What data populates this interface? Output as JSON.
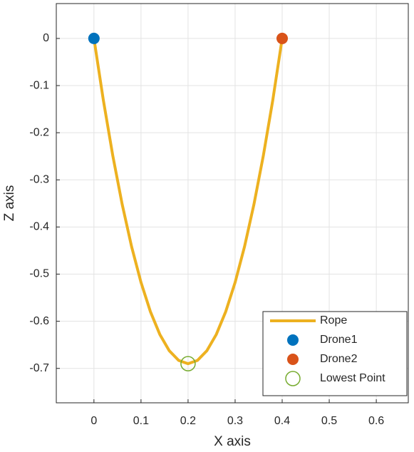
{
  "chart_data": {
    "type": "line",
    "xlabel": "X axis",
    "ylabel": "Z axis",
    "xlim": [
      -0.08,
      0.668
    ],
    "ylim": [
      -0.773,
      0.074
    ],
    "xticks": [
      0,
      0.1,
      0.2,
      0.3,
      0.4,
      0.5,
      0.6
    ],
    "yticks": [
      0,
      -0.1,
      -0.2,
      -0.3,
      -0.4,
      -0.5,
      -0.6,
      -0.7
    ],
    "grid": true,
    "legend": "lower-right",
    "series": [
      {
        "name": "Rope",
        "color": "#EDB120",
        "style": "line",
        "x": [
          0,
          0.02,
          0.04,
          0.06,
          0.08,
          0.1,
          0.12,
          0.14,
          0.16,
          0.18,
          0.2,
          0.22,
          0.24,
          0.26,
          0.28,
          0.3,
          0.32,
          0.34,
          0.36,
          0.38,
          0.4
        ],
        "values": [
          0,
          -0.1311,
          -0.2484,
          -0.3519,
          -0.4416,
          -0.5175,
          -0.5796,
          -0.6279,
          -0.6624,
          -0.6831,
          -0.69,
          -0.6831,
          -0.6624,
          -0.6279,
          -0.5796,
          -0.5175,
          -0.4416,
          -0.3519,
          -0.2484,
          -0.1311,
          0
        ]
      },
      {
        "name": "Drone1",
        "color": "#0072BD",
        "style": "marker",
        "x": [
          0
        ],
        "values": [
          0
        ]
      },
      {
        "name": "Drone2",
        "color": "#D95319",
        "style": "marker",
        "x": [
          0.4
        ],
        "values": [
          0
        ]
      },
      {
        "name": "Lowest Point",
        "color": "#77AC30",
        "style": "open-marker",
        "x": [
          0.2
        ],
        "values": [
          -0.69
        ]
      }
    ]
  }
}
